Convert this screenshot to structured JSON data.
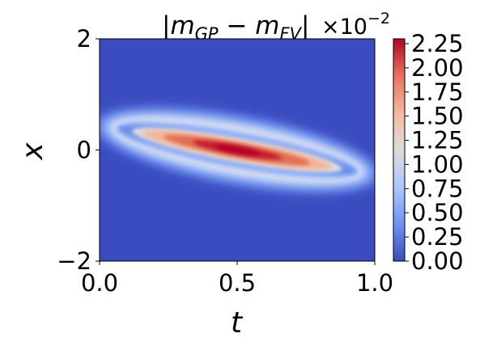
{
  "chart_data": {
    "type": "heatmap",
    "title": "|m_GP − m_FV|",
    "title_parts": {
      "abs_open": "|",
      "m1": "m",
      "sub1": "GP",
      "minus": " − ",
      "m2": "m",
      "sub2": "FV",
      "abs_close": "|"
    },
    "offset_text": {
      "base": "×10",
      "exponent": "−2"
    },
    "xlabel": "t",
    "ylabel": "x",
    "xlim": [
      0.0,
      1.0
    ],
    "ylim": [
      -2,
      2
    ],
    "xticks": [
      0.0,
      0.5,
      1.0
    ],
    "xtick_labels": [
      "0.0",
      "0.5",
      "1.0"
    ],
    "yticks": [
      -2,
      0,
      2
    ],
    "ytick_labels": [
      "−2",
      "0",
      "2"
    ],
    "colormap": "coolwarm",
    "colormap_stops": [
      "#3b4cc0",
      "#6f92f3",
      "#aac7fd",
      "#dddddd",
      "#f7b89c",
      "#e7745b",
      "#b40426"
    ],
    "color_range": [
      0.0,
      2.3
    ],
    "colorbar_ticks": [
      0.0,
      0.25,
      0.5,
      0.75,
      1.0,
      1.25,
      1.5,
      1.75,
      2.0,
      2.25
    ],
    "colorbar_tick_labels": [
      "0.00",
      "0.25",
      "0.50",
      "0.75",
      "1.00",
      "1.25",
      "1.50",
      "1.75",
      "2.00",
      "2.25"
    ],
    "peak": {
      "t": 0.5,
      "x": 0.0,
      "value": 2.3
    },
    "band_slope_x_per_t": -0.9,
    "grid": false
  }
}
